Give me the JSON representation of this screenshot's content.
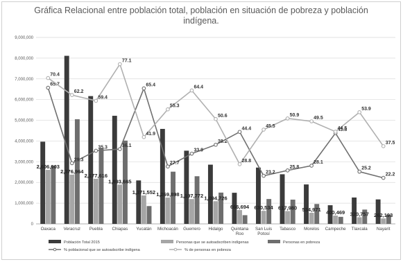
{
  "chart_data": {
    "type": "bar",
    "title": "Gráfica Relacional entre población total, población en situación de pobreza y población indígena.",
    "categories": [
      "Oaxaca",
      "Veracruz",
      "Puebla",
      "Chiapas",
      "Yucatán",
      "Michoacán",
      "Guerrero",
      "Hidalgo",
      "Quintana Roo",
      "San Luis Potosí",
      "Tabasco",
      "Morelos",
      "Campeche",
      "Tlaxcala",
      "Nayarit"
    ],
    "y_ticks": [
      "0",
      "1,000,000",
      "2,000,000",
      "3,000,000",
      "4,000,000",
      "5,000,000",
      "6,000,000",
      "7,000,000",
      "8,000,000",
      "9,000,000"
    ],
    "ylim": [
      0,
      9000000
    ],
    "bar_series": [
      {
        "name": "Población Total 2015",
        "color": "#3b3b3b",
        "values": [
          3967889,
          8112505,
          6168883,
          5217908,
          2097175,
          4584471,
          3533251,
          2858359,
          1501562,
          2717820,
          2395272,
          1903811,
          899931,
          1272847,
          1181050
        ]
      },
      {
        "name": "Personas que se autoadscriben indígenas",
        "color": "#a6a6a6",
        "values": [
          2606903,
          2376964,
          2177616,
          1893665,
          1371552,
          1269898,
          1197772,
          1094726,
          666694,
          630534,
          617980,
          534971,
          400469,
          320757,
          262193
        ]
      },
      {
        "name": "Personas en pobreza",
        "color": "#6e6e6e",
        "values": [
          2800000,
          5050000,
          3650000,
          4020000,
          860000,
          2520000,
          2300000,
          1510000,
          420000,
          1200000,
          1170000,
          960000,
          340000,
          690000,
          440000
        ]
      }
    ],
    "bar_data_labels": [
      "2,606,903",
      "2,376,964",
      "2,177,616",
      "1,893,665",
      "1,371,552",
      "1,269,898",
      "1,197,772",
      "1,094,726",
      "666,694",
      "630,534",
      "617,980",
      "534,971",
      "400,469",
      "320,757",
      "262,193"
    ],
    "line_series": [
      {
        "name": "% poblacional que se autoadscribe indígena",
        "color": "#707070",
        "values": [
          65.7,
          29.3,
          35.3,
          36.1,
          65.4,
          27.7,
          33.9,
          38.2,
          44.4,
          23.2,
          25.8,
          28.1,
          43.8,
          25.2,
          22.2
        ]
      },
      {
        "name": "% de personas en pobreza",
        "color": "#b0b0b0",
        "values": [
          70.4,
          62.2,
          59.4,
          77.1,
          41.9,
          55.3,
          64.4,
          50.6,
          28.8,
          45.5,
          50.9,
          49.5,
          44.5,
          53.9,
          37.5
        ]
      }
    ],
    "pct_max": 90,
    "grid": true,
    "legend_position": "bottom"
  }
}
